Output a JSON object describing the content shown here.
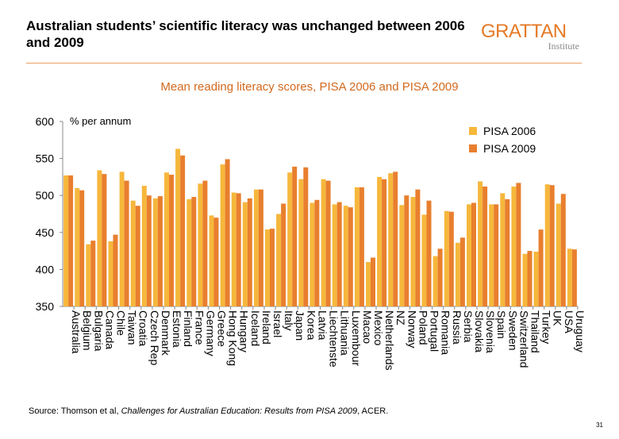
{
  "slide": {
    "title": "Australian students’ scientific literacy was unchanged between 2006 and 2009",
    "source_prefix": "Source: Thomson et al, ",
    "source_italic": "Challenges for Australian Education: Results from PISA 2009",
    "source_suffix": ", ACER.",
    "page_number": "31"
  },
  "logo": {
    "main": "GRATTAN",
    "sub": "Institute",
    "color": "#e57a26"
  },
  "chart_data": {
    "type": "bar",
    "title": "Mean reading literacy scores, PISA 2006 and PISA 2009",
    "ylabel": "% per annum",
    "ylim": [
      350,
      600
    ],
    "yticks": [
      350,
      400,
      450,
      500,
      550,
      600
    ],
    "legend_position": "top-right",
    "categories": [
      "Australia",
      "Belgium",
      "Bulgaria",
      "Canada",
      "Chile",
      "Taiwan",
      "Croatia",
      "Czech Rep",
      "Denmark",
      "Estonia",
      "Finland",
      "France",
      "Germany",
      "Greece",
      "Hong Kong",
      "Hungary",
      "Iceland",
      "Ireland",
      "Israel",
      "Italy",
      "Japan",
      "Korea",
      "Latvia",
      "Liechtenste",
      "Lithuania",
      "Luxembour",
      "Macao",
      "Mexico",
      "Netherlands",
      "NZ",
      "Norway",
      "Poland",
      "Portugal",
      "Romania",
      "Russia",
      "Serbia",
      "Slovakia",
      "Slovenia",
      "Spain",
      "Sweden",
      "Switzerland",
      "Thailand",
      "Turkey",
      "UK",
      "USA",
      "Uruguay"
    ],
    "series": [
      {
        "name": "PISA 2006",
        "color": "#f6b73c",
        "values": [
          527,
          510,
          434,
          534,
          438,
          532,
          493,
          513,
          496,
          531,
          563,
          495,
          516,
          473,
          542,
          504,
          491,
          508,
          454,
          475,
          531,
          522,
          490,
          522,
          488,
          486,
          511,
          410,
          525,
          530,
          487,
          498,
          474,
          418,
          479,
          436,
          488,
          519,
          488,
          503,
          512,
          421,
          424,
          515,
          489,
          428
        ]
      },
      {
        "name": "PISA 2009",
        "color": "#e87f2e",
        "values": [
          527,
          507,
          439,
          529,
          447,
          520,
          486,
          500,
          499,
          528,
          554,
          498,
          520,
          470,
          549,
          503,
          496,
          508,
          455,
          489,
          539,
          538,
          494,
          520,
          491,
          484,
          511,
          416,
          522,
          532,
          500,
          508,
          493,
          428,
          478,
          443,
          490,
          512,
          488,
          495,
          517,
          425,
          454,
          514,
          502,
          427
        ]
      }
    ]
  }
}
